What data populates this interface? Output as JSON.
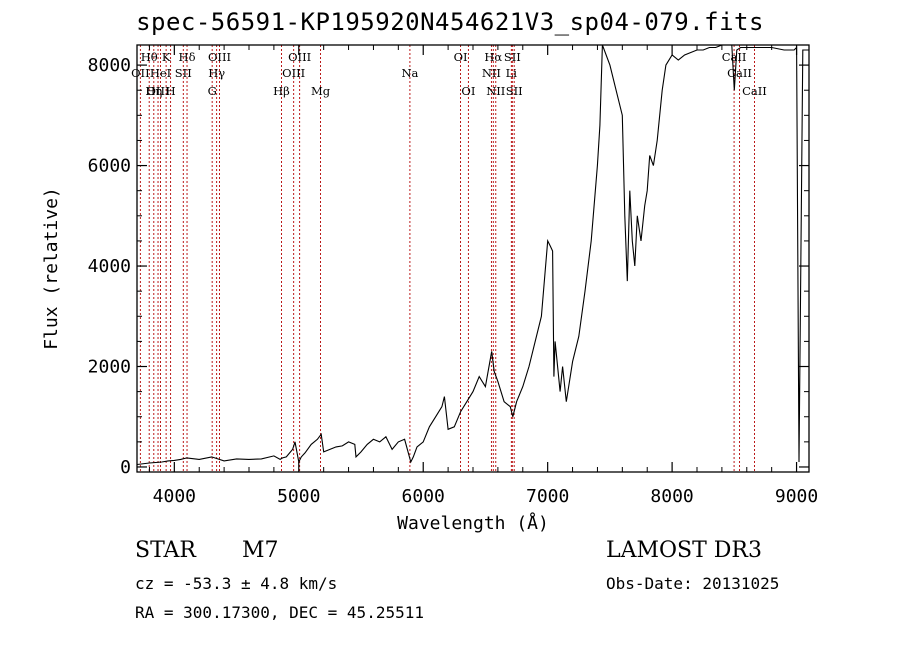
{
  "chart_data": {
    "type": "line",
    "title": "spec-56591-KP195920N454621V3_sp04-079.fits",
    "xlabel": "Wavelength (Å)",
    "ylabel": "Flux (relative)",
    "xlim": [
      3700,
      9100
    ],
    "ylim": [
      -100,
      8400
    ],
    "xticks": [
      4000,
      5000,
      6000,
      7000,
      8000,
      9000
    ],
    "yticks": [
      0,
      2000,
      4000,
      6000,
      8000
    ],
    "grid": false,
    "series": [
      {
        "name": "flux",
        "x": [
          3700,
          3800,
          3900,
          3950,
          4000,
          4050,
          4100,
          4200,
          4300,
          4400,
          4500,
          4600,
          4700,
          4800,
          4850,
          4870,
          4900,
          4950,
          4970,
          5000,
          5020,
          5050,
          5100,
          5150,
          5180,
          5200,
          5250,
          5300,
          5350,
          5400,
          5450,
          5460,
          5500,
          5550,
          5600,
          5650,
          5700,
          5750,
          5800,
          5850,
          5900,
          5920,
          5950,
          6000,
          6050,
          6100,
          6150,
          6170,
          6200,
          6250,
          6300,
          6350,
          6400,
          6450,
          6500,
          6550,
          6570,
          6600,
          6650,
          6700,
          6720,
          6750,
          6800,
          6850,
          6900,
          6950,
          7000,
          7020,
          7040,
          7050,
          7060,
          7100,
          7120,
          7150,
          7200,
          7250,
          7300,
          7350,
          7400,
          7420,
          7440,
          7500,
          7550,
          7600,
          7620,
          7640,
          7660,
          7680,
          7700,
          7720,
          7750,
          7780,
          7800,
          7820,
          7850,
          7880,
          7900,
          7920,
          7950,
          8000,
          8050,
          8100,
          8150,
          8200,
          8250,
          8300,
          8350,
          8400,
          8450,
          8480,
          8500,
          8520,
          8550,
          8600,
          8650,
          8700,
          8800,
          8900,
          8980,
          9000,
          9020,
          9050,
          9100
        ],
        "y": [
          50,
          80,
          100,
          120,
          130,
          150,
          180,
          150,
          200,
          120,
          160,
          150,
          160,
          220,
          150,
          180,
          200,
          350,
          500,
          100,
          200,
          280,
          450,
          550,
          650,
          300,
          350,
          400,
          420,
          500,
          450,
          200,
          300,
          450,
          550,
          500,
          600,
          350,
          500,
          550,
          100,
          200,
          400,
          500,
          800,
          1000,
          1200,
          1400,
          750,
          800,
          1100,
          1300,
          1500,
          1800,
          1600,
          2300,
          1900,
          1700,
          1300,
          1200,
          1000,
          1300,
          1600,
          2000,
          2500,
          3000,
          4500,
          4400,
          4300,
          1800,
          2500,
          1500,
          2000,
          1300,
          2100,
          2600,
          3500,
          4500,
          6000,
          6800,
          8400,
          8000,
          7500,
          7000,
          5000,
          3700,
          5500,
          4500,
          4000,
          5000,
          4500,
          5200,
          5500,
          6200,
          6000,
          6500,
          7000,
          7500,
          8000,
          8200,
          8100,
          8200,
          8250,
          8300,
          8300,
          8350,
          8350,
          8400,
          8400,
          8400,
          7500,
          8300,
          8350,
          8350,
          8350,
          8350,
          8350,
          8300,
          8300,
          8350,
          100,
          8300,
          8300
        ]
      }
    ],
    "lines": [
      {
        "name": "Hθ",
        "w": 3798,
        "row": 0
      },
      {
        "name": "OII",
        "w": 3727,
        "row": 1
      },
      {
        "name": "OIII",
        "w": 3869,
        "row": 2
      },
      {
        "name": "HeI",
        "w": 3889,
        "row": 1
      },
      {
        "name": "Hη",
        "w": 3835,
        "row": 2
      },
      {
        "name": "K",
        "w": 3934,
        "row": 0
      },
      {
        "name": "H",
        "w": 3970,
        "row": 2
      },
      {
        "name": "SII",
        "w": 4072,
        "row": 1
      },
      {
        "name": "Hδ",
        "w": 4102,
        "row": 0
      },
      {
        "name": "OIII",
        "w": 4363,
        "row": 0
      },
      {
        "name": "Hγ",
        "w": 4340,
        "row": 1
      },
      {
        "name": "G",
        "w": 4304,
        "row": 2
      },
      {
        "name": "Hβ",
        "w": 4861,
        "row": 2
      },
      {
        "name": "OIII",
        "w": 4959,
        "row": 1
      },
      {
        "name": "OIII",
        "w": 5007,
        "row": 0
      },
      {
        "name": "Mg",
        "w": 5175,
        "row": 2
      },
      {
        "name": "Na",
        "w": 5893,
        "row": 1
      },
      {
        "name": "OI",
        "w": 6300,
        "row": 0
      },
      {
        "name": "OI",
        "w": 6363,
        "row": 2
      },
      {
        "name": "Hα",
        "w": 6563,
        "row": 0
      },
      {
        "name": "NII",
        "w": 6548,
        "row": 1
      },
      {
        "name": "NII",
        "w": 6583,
        "row": 2
      },
      {
        "name": "SII",
        "w": 6716,
        "row": 0
      },
      {
        "name": "Li",
        "w": 6708,
        "row": 1
      },
      {
        "name": "SII",
        "w": 6731,
        "row": 2
      },
      {
        "name": "CaII",
        "w": 8498,
        "row": 0
      },
      {
        "name": "CaII",
        "w": 8542,
        "row": 1
      },
      {
        "name": "CaII",
        "w": 8662,
        "row": 2
      }
    ]
  },
  "meta": {
    "class": "STAR",
    "subclass": "M7",
    "survey": "LAMOST DR3",
    "cz": "cz = -53.3 ± 4.8 km/s",
    "obsdate": "Obs-Date: 20131025",
    "coords": "RA = 300.17300, DEC =  45.25511"
  }
}
